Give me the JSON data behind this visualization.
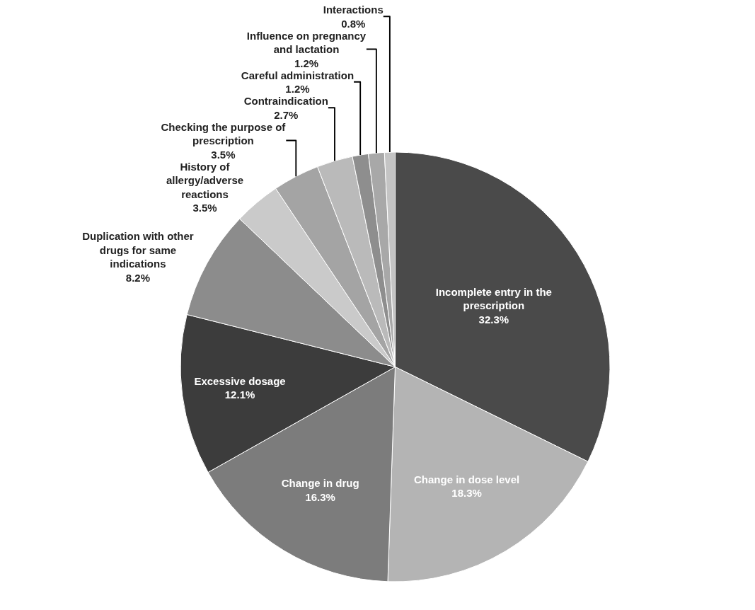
{
  "chart_data": {
    "type": "pie",
    "categories": [
      "Incomplete entry in the prescription",
      "Change in dose level",
      "Change in drug",
      "Excessive dosage",
      "Duplication with other drugs for same indications",
      "History of allergy/adverse reactions",
      "Checking the purpose of prescription",
      "Contraindication",
      "Careful administration",
      "Influence on pregnancy and lactation",
      "Interactions"
    ],
    "values": [
      32.3,
      18.3,
      16.3,
      12.1,
      8.2,
      3.5,
      3.5,
      2.7,
      1.2,
      1.2,
      0.8
    ],
    "value_labels": [
      "32.3%",
      "18.3%",
      "16.3%",
      "12.1%",
      "8.2%",
      "3.5%",
      "3.5%",
      "2.7%",
      "1.2%",
      "1.2%",
      "0.8%"
    ],
    "colors": [
      "#4a4a4a",
      "#b4b4b4",
      "#7c7c7c",
      "#3c3c3c",
      "#8c8c8c",
      "#cacaca",
      "#a4a4a4",
      "#bababa",
      "#8e8e8e",
      "#a8a8a8",
      "#c4c4c4"
    ],
    "legend": false
  }
}
